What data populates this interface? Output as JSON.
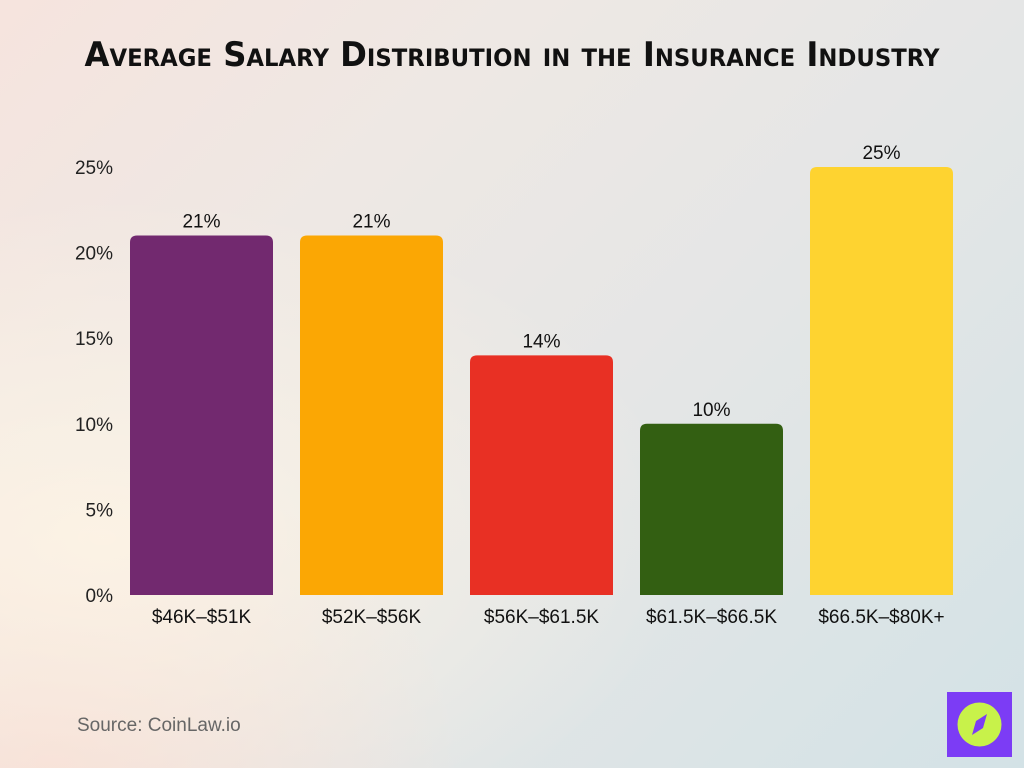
{
  "chart_data": {
    "type": "bar",
    "title": "Average Salary Distribution in the Insurance Industry",
    "xlabel": "",
    "ylabel": "",
    "categories": [
      "$46K–$51K",
      "$52K–$56K",
      "$56K–$61.5K",
      "$61.5K–$66.5K",
      "$66.5K–$80K+"
    ],
    "values": [
      21,
      21,
      14,
      10,
      25
    ],
    "data_labels": [
      "21%",
      "21%",
      "14%",
      "10%",
      "25%"
    ],
    "colors": [
      "#72296f",
      "#fba704",
      "#e83024",
      "#335f12",
      "#fed330"
    ],
    "ylim": [
      0,
      25
    ],
    "yticks": [
      0,
      5,
      10,
      15,
      20,
      25
    ],
    "ytick_labels": [
      "0%",
      "5%",
      "10%",
      "15%",
      "20%",
      "25%"
    ],
    "grid": false,
    "legend": "none"
  },
  "source": "Source: CoinLaw.io",
  "logo": {
    "icon": "compass-icon",
    "colors": [
      "#7c3cf5",
      "#c8f24a"
    ]
  }
}
